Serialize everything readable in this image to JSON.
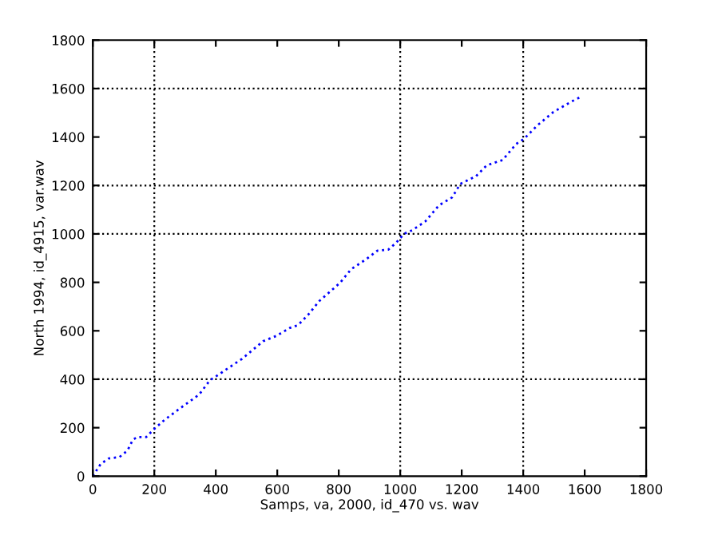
{
  "chart_data": {
    "type": "line",
    "xlabel": "Samps, va, 2000, id_470 vs. wav",
    "ylabel": "North 1994, id_4915, var.wav",
    "x": [
      0,
      26,
      52,
      87,
      113,
      130,
      144,
      173,
      199,
      234,
      286,
      346,
      381,
      416,
      485,
      554,
      597,
      641,
      667,
      701,
      736,
      805,
      840,
      892,
      926,
      961,
      987,
      1013,
      1039,
      1082,
      1126,
      1169,
      1195,
      1247,
      1281,
      1333,
      1377,
      1403,
      1446,
      1498,
      1558,
      1593
    ],
    "series": [
      {
        "color": "#0000ff",
        "values": [
          0,
          51,
          73,
          79,
          106,
          150,
          161,
          161,
          194,
          233,
          282,
          337,
          396,
          425,
          484,
          557,
          579,
          612,
          623,
          667,
          722,
          799,
          854,
          898,
          931,
          935,
          964,
          1001,
          1015,
          1052,
          1118,
          1151,
          1206,
          1239,
          1283,
          1305,
          1371,
          1393,
          1448,
          1503,
          1547,
          1569
        ]
      }
    ],
    "line_style": "dotted",
    "marker": "none",
    "xlim": [
      0,
      1800
    ],
    "ylim": [
      0,
      1800
    ],
    "xticks": [
      0,
      200,
      400,
      600,
      800,
      1000,
      1200,
      1400,
      1600,
      1800
    ],
    "yticks": [
      0,
      200,
      400,
      600,
      800,
      1000,
      1200,
      1400,
      1600,
      1800
    ],
    "grid": false,
    "legend": false,
    "ref_lines": [
      {
        "axis": "x",
        "value": 200,
        "color": "#000000",
        "line_style": "dotted"
      },
      {
        "axis": "x",
        "value": 1000,
        "color": "#000000",
        "line_style": "dotted"
      },
      {
        "axis": "x",
        "value": 1400,
        "color": "#000000",
        "line_style": "dotted"
      },
      {
        "axis": "y",
        "value": 400,
        "color": "#000000",
        "line_style": "dotted"
      },
      {
        "axis": "y",
        "value": 1000,
        "color": "#000000",
        "line_style": "dotted"
      },
      {
        "axis": "y",
        "value": 1200,
        "color": "#000000",
        "line_style": "dotted"
      },
      {
        "axis": "y",
        "value": 1600,
        "color": "#000000",
        "line_style": "dotted"
      }
    ]
  }
}
